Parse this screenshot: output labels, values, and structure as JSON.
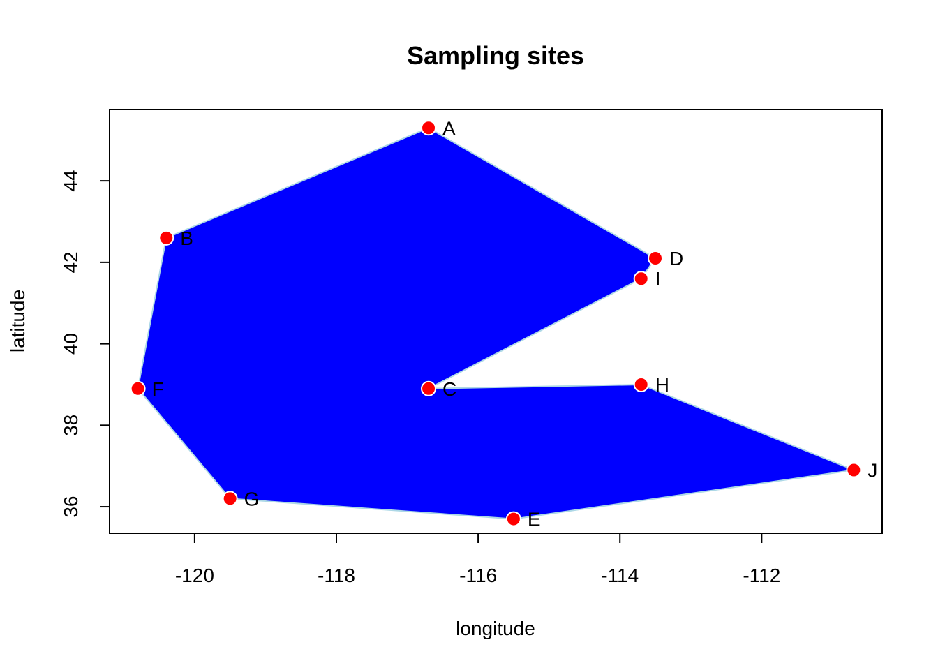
{
  "chart_data": {
    "type": "scatter",
    "title": "Sampling sites",
    "xlabel": "longitude",
    "ylabel": "latitude",
    "xlim": [
      -121.2,
      -110.3
    ],
    "ylim": [
      35.35,
      45.75
    ],
    "xticks": [
      -120,
      -118,
      -116,
      -114,
      -112
    ],
    "yticks": [
      36,
      38,
      40,
      42,
      44
    ],
    "xtick_labels": [
      "-120",
      "-118",
      "-116",
      "-114",
      "-112"
    ],
    "ytick_labels": [
      "36",
      "38",
      "40",
      "42",
      "44"
    ],
    "grid": false,
    "points": [
      {
        "label": "A",
        "x": -116.7,
        "y": 45.3
      },
      {
        "label": "B",
        "x": -120.4,
        "y": 42.6
      },
      {
        "label": "C",
        "x": -116.7,
        "y": 38.9
      },
      {
        "label": "D",
        "x": -113.5,
        "y": 42.1
      },
      {
        "label": "E",
        "x": -115.5,
        "y": 35.7
      },
      {
        "label": "F",
        "x": -120.8,
        "y": 38.9
      },
      {
        "label": "G",
        "x": -119.5,
        "y": 36.2
      },
      {
        "label": "H",
        "x": -113.7,
        "y": 39.0
      },
      {
        "label": "I",
        "x": -113.7,
        "y": 41.6
      },
      {
        "label": "J",
        "x": -110.7,
        "y": 36.9
      }
    ],
    "polygon_order": [
      "A",
      "D",
      "I",
      "C",
      "H",
      "J",
      "E",
      "G",
      "F",
      "B"
    ],
    "colors": {
      "polygon_fill": "#0000ff",
      "polygon_stroke": "#add8e6",
      "point_fill": "#ff0000",
      "point_stroke": "#ffffff"
    }
  }
}
